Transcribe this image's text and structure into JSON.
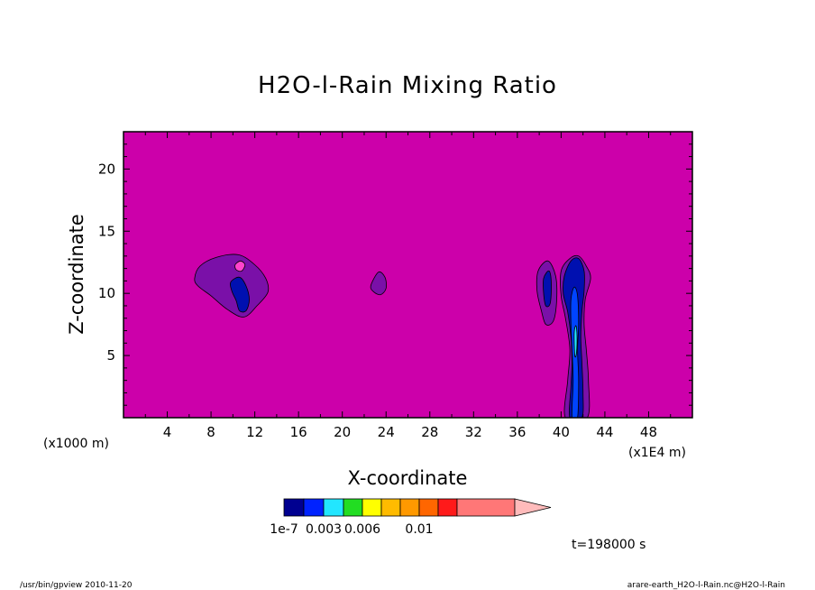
{
  "chart_data": {
    "type": "heatmap",
    "title": "H2O-l-Rain Mixing Ratio",
    "xlabel": "X-coordinate",
    "ylabel": "Z-coordinate",
    "x_unit": "(x1E4 m)",
    "y_unit": "(x1000 m)",
    "xlim": [
      0,
      52
    ],
    "ylim": [
      0,
      23
    ],
    "xticks": [
      4,
      8,
      12,
      16,
      20,
      24,
      28,
      32,
      36,
      40,
      44,
      48
    ],
    "yticks": [
      5,
      10,
      15,
      20
    ],
    "background_color": "#cc00aa",
    "colorbar": {
      "colors": [
        "#000090",
        "#0022ff",
        "#22e6ff",
        "#22dd22",
        "#ffff00",
        "#ffbb00",
        "#ff9900",
        "#ff6600",
        "#ff1a1a",
        "#ff7777",
        "#ffbbbb"
      ],
      "labels": [
        "1e-7",
        "0.003",
        "0.006",
        "0.01"
      ],
      "label_positions": [
        0,
        2,
        4,
        7
      ]
    },
    "time_label": "t=198000 s",
    "features": [
      {
        "name": "cloud-purple-left",
        "color": "#7a10a8",
        "points": [
          [
            6.5,
            11.2
          ],
          [
            7,
            12.2
          ],
          [
            8.5,
            12.9
          ],
          [
            10.5,
            13.1
          ],
          [
            12,
            12.3
          ],
          [
            13,
            11.2
          ],
          [
            13.2,
            10.1
          ],
          [
            12.2,
            9
          ],
          [
            11,
            8.1
          ],
          [
            9.5,
            8.7
          ],
          [
            8,
            9.8
          ],
          [
            6.8,
            10.6
          ]
        ]
      },
      {
        "name": "cloud-blue-left",
        "color": "#0010b0",
        "points": [
          [
            9.8,
            10.9
          ],
          [
            10.6,
            11.3
          ],
          [
            11.2,
            10.6
          ],
          [
            11.5,
            9.5
          ],
          [
            11.2,
            8.6
          ],
          [
            10.6,
            8.6
          ],
          [
            10.3,
            9.4
          ],
          [
            9.9,
            10.2
          ]
        ]
      },
      {
        "name": "cloud-pink-left",
        "color": "#ff44cc",
        "points": [
          [
            10.2,
            12.3
          ],
          [
            10.7,
            12.6
          ],
          [
            11.1,
            12.3
          ],
          [
            10.8,
            11.8
          ],
          [
            10.3,
            11.9
          ]
        ]
      },
      {
        "name": "cloud-purple-mid",
        "color": "#7a10a8",
        "points": [
          [
            22.6,
            10.6
          ],
          [
            23.3,
            11.7
          ],
          [
            23.9,
            11.3
          ],
          [
            24.0,
            10.4
          ],
          [
            23.5,
            9.9
          ],
          [
            22.9,
            10.1
          ]
        ]
      },
      {
        "name": "cloud-purple-right-1",
        "color": "#7a10a8",
        "points": [
          [
            37.9,
            11.8
          ],
          [
            38.8,
            12.6
          ],
          [
            39.5,
            11.4
          ],
          [
            39.6,
            9.5
          ],
          [
            39.3,
            7.8
          ],
          [
            38.6,
            7.5
          ],
          [
            38.2,
            8.6
          ],
          [
            37.8,
            10.2
          ]
        ]
      },
      {
        "name": "cloud-blue-right-1",
        "color": "#0010b0",
        "points": [
          [
            38.4,
            11.2
          ],
          [
            38.9,
            11.8
          ],
          [
            39.1,
            10.8
          ],
          [
            39.0,
            9.2
          ],
          [
            38.6,
            9.0
          ],
          [
            38.4,
            10.0
          ]
        ]
      },
      {
        "name": "cloud-purple-right-2",
        "color": "#7a10a8",
        "points": [
          [
            40.0,
            11.8
          ],
          [
            40.8,
            12.8
          ],
          [
            41.6,
            13.0
          ],
          [
            42.3,
            12.2
          ],
          [
            42.7,
            11.2
          ],
          [
            42.2,
            9.5
          ],
          [
            42.1,
            7.5
          ],
          [
            42.3,
            5.5
          ],
          [
            42.5,
            3.0
          ],
          [
            42.4,
            0
          ],
          [
            40.4,
            0
          ],
          [
            40.6,
            3.0
          ],
          [
            40.8,
            5.5
          ],
          [
            40.4,
            8
          ],
          [
            40.0,
            9.8
          ]
        ]
      },
      {
        "name": "cloud-blue-right-2",
        "color": "#0010b0",
        "points": [
          [
            40.3,
            11.4
          ],
          [
            40.9,
            12.6
          ],
          [
            41.6,
            12.8
          ],
          [
            42.1,
            11.8
          ],
          [
            42.1,
            10.2
          ],
          [
            41.9,
            8.5
          ],
          [
            41.8,
            6.5
          ],
          [
            41.9,
            4.5
          ],
          [
            42.0,
            2.0
          ],
          [
            41.9,
            0
          ],
          [
            40.8,
            0
          ],
          [
            40.9,
            2.5
          ],
          [
            41.0,
            4.5
          ],
          [
            40.9,
            6.5
          ],
          [
            40.6,
            8.5
          ],
          [
            40.2,
            10.0
          ]
        ]
      },
      {
        "name": "cloud-brightblue-right",
        "color": "#0044ff",
        "points": [
          [
            40.9,
            9.5
          ],
          [
            41.2,
            10.5
          ],
          [
            41.5,
            9.8
          ],
          [
            41.6,
            7.5
          ],
          [
            41.5,
            5.5
          ],
          [
            41.6,
            3.0
          ],
          [
            41.5,
            0
          ],
          [
            41.0,
            0
          ],
          [
            41.1,
            3.0
          ],
          [
            41.0,
            5.5
          ],
          [
            40.9,
            7.5
          ]
        ]
      },
      {
        "name": "cloud-cyan-right",
        "color": "#22e6ff",
        "points": [
          [
            41.2,
            6.8
          ],
          [
            41.35,
            7.4
          ],
          [
            41.45,
            6.6
          ],
          [
            41.4,
            5.2
          ],
          [
            41.25,
            5.0
          ]
        ]
      }
    ]
  },
  "footer": {
    "left": "/usr/bin/gpview   2010-11-20",
    "right": "arare-earth_H2O-l-Rain.nc@H2O-l-Rain"
  }
}
